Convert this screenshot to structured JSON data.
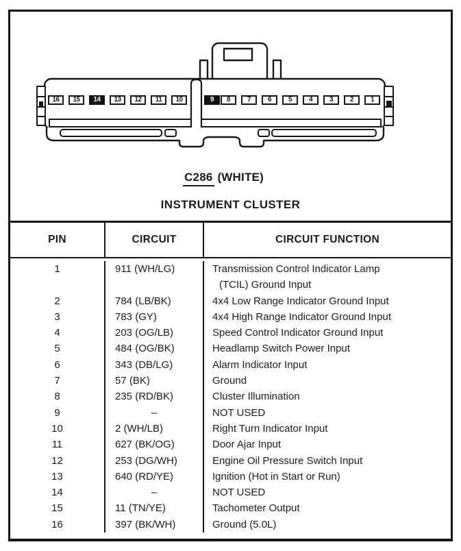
{
  "diagram": {
    "connector_id": "C286",
    "connector_color_suffix": " (WHITE)",
    "subtitle": "INSTRUMENT CLUSTER"
  },
  "connector": {
    "pins_left": [
      "16",
      "15",
      "14",
      "13",
      "12",
      "11",
      "10"
    ],
    "pins_right": [
      "9",
      "8",
      "7",
      "6",
      "5",
      "4",
      "3",
      "2",
      "1"
    ],
    "blocked_pins": [
      "14",
      "9"
    ],
    "ink_color": "#171717",
    "body_fill": "#ffffff"
  },
  "table": {
    "headers": [
      "PIN",
      "CIRCUIT",
      "CIRCUIT FUNCTION"
    ],
    "not_used_dash": "–",
    "rows": [
      {
        "pin": "1",
        "circuit": "911 (WH/LG)",
        "function_lines": [
          "Transmission Control Indicator Lamp",
          "(TCIL) Ground Input"
        ]
      },
      {
        "pin": "2",
        "circuit": "784 (LB/BK)",
        "function_lines": [
          "4x4 Low Range Indicator Ground Input"
        ]
      },
      {
        "pin": "3",
        "circuit": "783 (GY)",
        "function_lines": [
          "4x4 High Range Indicator Ground Input"
        ]
      },
      {
        "pin": "4",
        "circuit": "203 (OG/LB)",
        "function_lines": [
          "Speed Control Indicator Ground Input"
        ]
      },
      {
        "pin": "5",
        "circuit": "484 (OG/BK)",
        "function_lines": [
          "Headlamp Switch Power Input"
        ]
      },
      {
        "pin": "6",
        "circuit": "343 (DB/LG)",
        "function_lines": [
          "Alarm Indicator Input"
        ]
      },
      {
        "pin": "7",
        "circuit": "57 (BK)",
        "function_lines": [
          "Ground"
        ]
      },
      {
        "pin": "8",
        "circuit": "235 (RD/BK)",
        "function_lines": [
          "Cluster Illumination"
        ]
      },
      {
        "pin": "9",
        "circuit": "–",
        "function_lines": [
          "NOT USED"
        ]
      },
      {
        "pin": "10",
        "circuit": "2 (WH/LB)",
        "function_lines": [
          "Right Turn Indicator Input"
        ]
      },
      {
        "pin": "11",
        "circuit": "627 (BK/OG)",
        "function_lines": [
          "Door Ajar Input"
        ]
      },
      {
        "pin": "12",
        "circuit": "253 (DG/WH)",
        "function_lines": [
          "Engine Oil Pressure Switch Input"
        ]
      },
      {
        "pin": "13",
        "circuit": "640 (RD/YE)",
        "function_lines": [
          "Ignition (Hot in Start or Run)"
        ]
      },
      {
        "pin": "14",
        "circuit": "–",
        "function_lines": [
          "NOT USED"
        ]
      },
      {
        "pin": "15",
        "circuit": "11 (TN/YE)",
        "function_lines": [
          "Tachometer Output"
        ]
      },
      {
        "pin": "16",
        "circuit": "397 (BK/WH)",
        "function_lines": [
          "Ground (5.0L)"
        ]
      }
    ]
  }
}
